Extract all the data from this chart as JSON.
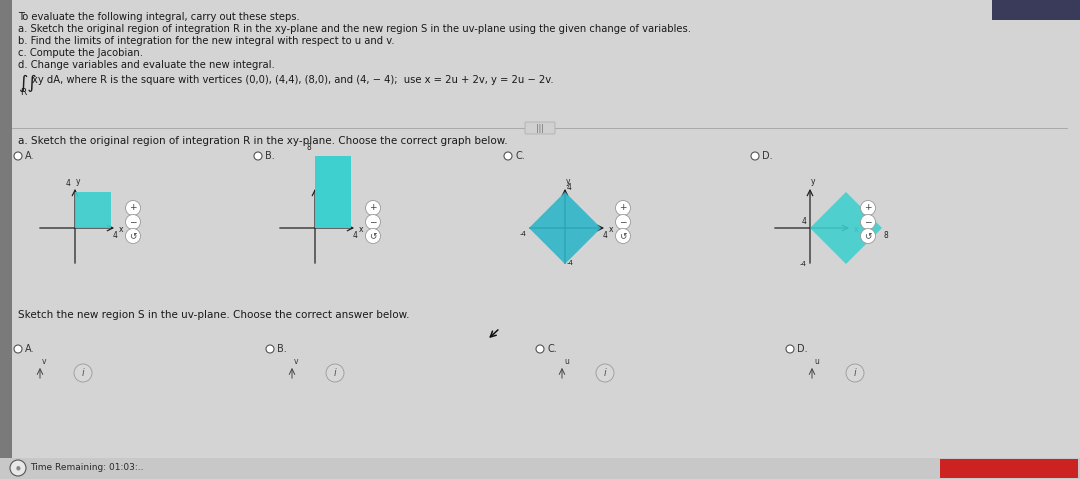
{
  "bg_color": "#d4d4d4",
  "panel_bg": "#ececec",
  "text_color": "#1a1a1a",
  "title_lines": [
    "To evaluate the following integral, carry out these steps.",
    "a. Sketch the original region of integration R in the xy-plane and the new region S in the uv-plane using the given change of variables.",
    "b. Find the limits of integration for the new integral with respect to u and v.",
    "c. Compute the Jacobian.",
    "d. Change variables and evaluate the new integral."
  ],
  "integral_text": "xy dA, where R is the square with vertices (0,0), (4,4), (8,0), and (4, − 4);  use x = 2u + 2v, y = 2u − 2v.",
  "section_a_label": "a. Sketch the original region of integration R in the xy-plane. Choose the correct graph below.",
  "section_b_label": "Sketch the new region S in the uv-plane. Choose the correct answer below.",
  "shape_color_cyan": "#3ecfcf",
  "shape_color_dark_cyan": "#2ab5c8",
  "left_bar_color": "#7a7a7a",
  "separator_color": "#aaaaaa",
  "zoom_circle_fill": "#ffffff",
  "zoom_circle_edge": "#999999",
  "radio_color": "#333333",
  "time_bar_color": "#c8c8c8",
  "red_bar_color": "#cc2222",
  "top_dark_color": "#3a3a5a"
}
